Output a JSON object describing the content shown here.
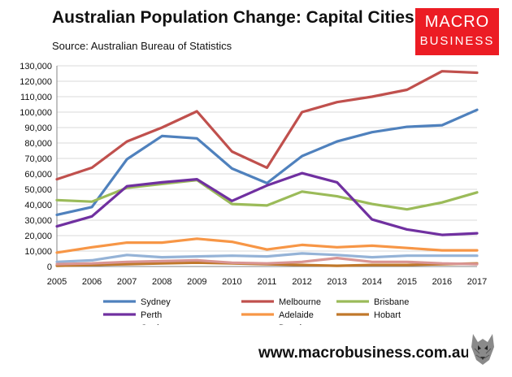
{
  "header": {
    "title": "Australian Population Change: Capital Cities",
    "subtitle": "Source: Australian Bureau of Statistics"
  },
  "logo": {
    "line1": "MACRO",
    "line2": "BUSINESS",
    "color": "#ec1c24"
  },
  "footer": {
    "url": "www.macrobusiness.com.au"
  },
  "chart_data": {
    "type": "line",
    "title": "Australian Population Change: Capital Cities",
    "xlabel": "",
    "ylabel": "",
    "x": [
      2005,
      2006,
      2007,
      2008,
      2009,
      2010,
      2011,
      2012,
      2013,
      2014,
      2015,
      2016,
      2017
    ],
    "x_tick_labels": [
      "2005",
      "2006",
      "2007",
      "2008",
      "2009",
      "2010",
      "2011",
      "2012",
      "2013",
      "2014",
      "2015",
      "2016",
      "2017"
    ],
    "ylim": [
      0,
      130000
    ],
    "y_ticks": [
      0,
      10000,
      20000,
      30000,
      40000,
      50000,
      60000,
      70000,
      80000,
      90000,
      100000,
      110000,
      120000,
      130000
    ],
    "y_tick_labels": [
      "0",
      "10,000",
      "20,000",
      "30,000",
      "40,000",
      "50,000",
      "60,000",
      "70,000",
      "80,000",
      "90,000",
      "100,000",
      "110,000",
      "120,000",
      "130,000"
    ],
    "grid": true,
    "legend_position": "bottom",
    "series": [
      {
        "name": "Sydney",
        "color": "#4f81bd",
        "values": [
          33500,
          38500,
          69500,
          84500,
          83000,
          63500,
          54000,
          71500,
          81000,
          87000,
          90500,
          91500,
          101500
        ]
      },
      {
        "name": "Melbourne",
        "color": "#c0504d",
        "values": [
          56500,
          64000,
          81000,
          90000,
          100500,
          74500,
          64000,
          100000,
          106500,
          110000,
          114500,
          126500,
          125500
        ]
      },
      {
        "name": "Brisbane",
        "color": "#9bbb59",
        "values": [
          43000,
          42000,
          51000,
          53500,
          56000,
          40500,
          39500,
          48500,
          45500,
          40500,
          37000,
          41500,
          48000
        ]
      },
      {
        "name": "Perth",
        "color": "#7030a0",
        "values": [
          26000,
          32500,
          52000,
          54500,
          56500,
          42500,
          52500,
          60500,
          54500,
          30500,
          24000,
          20500,
          21500
        ]
      },
      {
        "name": "Adelaide",
        "color": "#f79646",
        "values": [
          9000,
          12500,
          15500,
          15500,
          18000,
          16000,
          11000,
          14000,
          12500,
          13500,
          12000,
          10500,
          10500
        ]
      },
      {
        "name": "Hobart",
        "color": "#c0782a",
        "values": [
          500,
          1000,
          1500,
          2000,
          2500,
          2000,
          1500,
          1000,
          500,
          1000,
          1000,
          1500,
          2000
        ]
      },
      {
        "name": "Canberra",
        "color": "#95b3d7",
        "values": [
          3000,
          4000,
          7500,
          6000,
          6500,
          7000,
          6500,
          8500,
          7500,
          6000,
          7000,
          7000,
          7000
        ]
      },
      {
        "name": "Darwin",
        "color": "#d99594",
        "values": [
          1500,
          2000,
          3000,
          3500,
          4000,
          2500,
          2000,
          3000,
          5500,
          3000,
          3000,
          2000,
          1500
        ]
      }
    ]
  }
}
